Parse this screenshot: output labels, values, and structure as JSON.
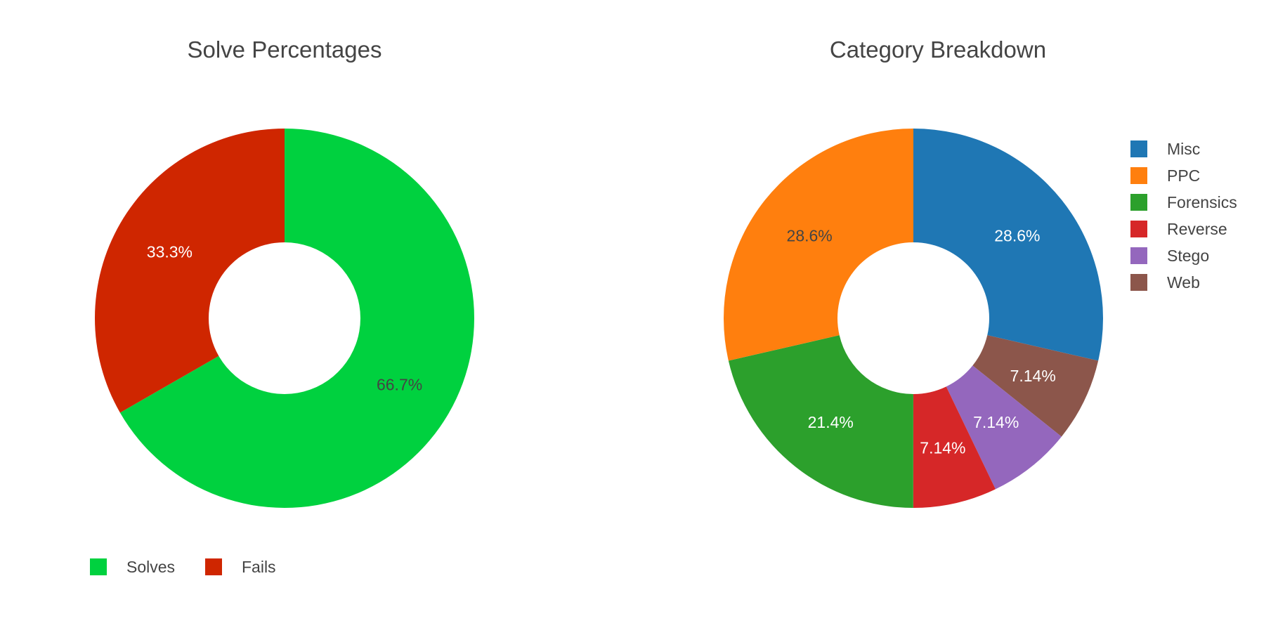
{
  "chart_data": [
    {
      "type": "pie",
      "hole": true,
      "title": "Solve Percentages",
      "legend_position": "bottom",
      "slices": [
        {
          "label": "Solves",
          "value": 66.7,
          "text": "66.7%",
          "color": "#00d13f",
          "text_color": "#444444"
        },
        {
          "label": "Fails",
          "value": 33.3,
          "text": "33.3%",
          "color": "#cf2600",
          "text_color": "#ffffff"
        }
      ]
    },
    {
      "type": "pie",
      "hole": true,
      "title": "Category Breakdown",
      "legend_position": "right",
      "slices": [
        {
          "label": "Misc",
          "value": 28.6,
          "text": "28.6%",
          "color": "#1f77b4",
          "text_color": "#ffffff"
        },
        {
          "label": "PPC",
          "value": 28.6,
          "text": "28.6%",
          "color": "#ff7f0e",
          "text_color": "#444444"
        },
        {
          "label": "Forensics",
          "value": 21.4,
          "text": "21.4%",
          "color": "#2ca02c",
          "text_color": "#ffffff"
        },
        {
          "label": "Reverse",
          "value": 7.14,
          "text": "7.14%",
          "color": "#d62728",
          "text_color": "#ffffff"
        },
        {
          "label": "Stego",
          "value": 7.14,
          "text": "7.14%",
          "color": "#9467bd",
          "text_color": "#ffffff"
        },
        {
          "label": "Web",
          "value": 7.14,
          "text": "7.14%",
          "color": "#8c564b",
          "text_color": "#ffffff"
        }
      ]
    }
  ]
}
